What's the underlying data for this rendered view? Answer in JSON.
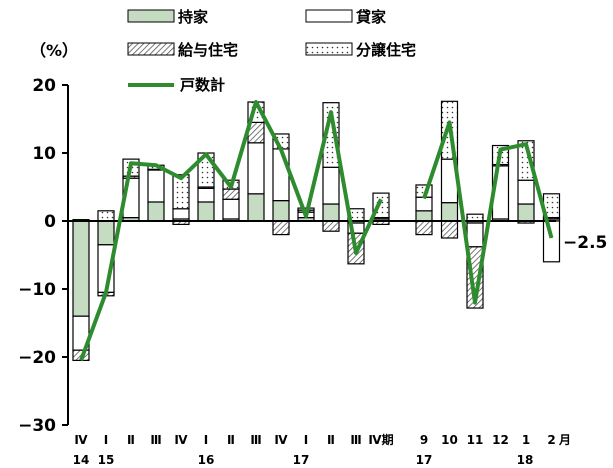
{
  "chart_data": {
    "type": "bar",
    "unit_label": "（%）",
    "y_axis": {
      "ylim": [
        -30,
        20
      ],
      "ticks": [
        20,
        10,
        0,
        -10,
        -20,
        -30
      ]
    },
    "x_tick_labels": [
      "Ⅳ",
      "Ⅰ",
      "Ⅱ",
      "Ⅲ",
      "Ⅳ",
      "Ⅰ",
      "Ⅱ",
      "Ⅲ",
      "Ⅳ",
      "Ⅰ",
      "Ⅱ",
      "Ⅲ",
      "Ⅳ期",
      "9",
      "10",
      "11",
      "12",
      "1",
      "2",
      "月"
    ],
    "year_labels": [
      "14",
      "15",
      "16",
      "17",
      "17",
      "18"
    ],
    "categories": [
      "14-Q4",
      "15-Q1",
      "15-Q2",
      "15-Q3",
      "15-Q4",
      "16-Q1",
      "16-Q2",
      "16-Q3",
      "16-Q4",
      "17-Q1",
      "17-Q2",
      "17-Q3",
      "17-Q4",
      "17-9",
      "17-10",
      "17-11",
      "17-12",
      "18-1",
      "18-2"
    ],
    "last_value_label": "−2.5",
    "series": [
      {
        "name": "持家",
        "color": "#c5dcc3",
        "values": [
          -14,
          -3.5,
          0.5,
          2.8,
          0.3,
          2.8,
          0.3,
          4.0,
          3.0,
          0.5,
          2.5,
          -0.3,
          0.3,
          1.5,
          2.7,
          -0.3,
          0.3,
          2.5,
          0.3
        ]
      },
      {
        "name": "貸家",
        "color": "#ffffff",
        "values": [
          -5,
          -7,
          5.8,
          4.7,
          1.5,
          2.0,
          2.9,
          7.5,
          7.6,
          0.8,
          5.4,
          -1.5,
          0.2,
          2.0,
          6.4,
          -3.5,
          7.8,
          3.5,
          -6.0
        ]
      },
      {
        "name": "給与住宅",
        "color": "#ffffff",
        "values": [
          -1.5,
          -0.5,
          0.3,
          0.1,
          -0.5,
          0.2,
          1.5,
          3.0,
          -2.0,
          0.3,
          -1.5,
          -4.5,
          -0.5,
          -2.0,
          -2.5,
          -9.0,
          0.2,
          -0.3,
          0.2
        ]
      },
      {
        "name": "分譲住宅",
        "color": "#ffffff",
        "values": [
          0.2,
          1.5,
          2.5,
          0.6,
          5.0,
          5.0,
          1.3,
          3.0,
          2.2,
          0.3,
          9.5,
          1.8,
          3.6,
          1.8,
          8.5,
          1.0,
          2.8,
          5.8,
          3.5
        ]
      },
      {
        "name": "戸数計",
        "color": "#2e8b2e",
        "values": [
          -20.5,
          -10.5,
          8.5,
          8.2,
          6.3,
          9.8,
          5.0,
          17.5,
          10.5,
          0.7,
          16.0,
          -4.7,
          3.2,
          3.3,
          14.5,
          -12.0,
          10.5,
          11.3,
          -2.5
        ]
      }
    ]
  }
}
